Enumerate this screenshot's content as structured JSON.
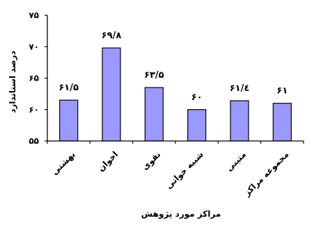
{
  "chart_data": {
    "type": "bar",
    "title": "",
    "xlabel": "مراکز مورد پژوهش",
    "ylabel": "درصد استاندارد",
    "ylim": [
      55,
      75
    ],
    "yticks": [
      55,
      60,
      65,
      70,
      75
    ],
    "ytick_labels": [
      "۵۵",
      "۶۰",
      "۶۵",
      "۷۰",
      "۷۵"
    ],
    "grid": false,
    "bar_color": "#9999ff",
    "categories": [
      "بهشتی",
      "اخوان",
      "نقوی",
      "شبیه خوانی",
      "متینی",
      "مجموعه مراکز"
    ],
    "values": [
      61.5,
      69.8,
      63.5,
      60,
      61.4,
      61
    ],
    "value_labels": [
      "۶۱/۵",
      "۶۹/۸",
      "۶۳/۵",
      "۶۰",
      "۶۱/٤",
      "۶۱"
    ]
  }
}
